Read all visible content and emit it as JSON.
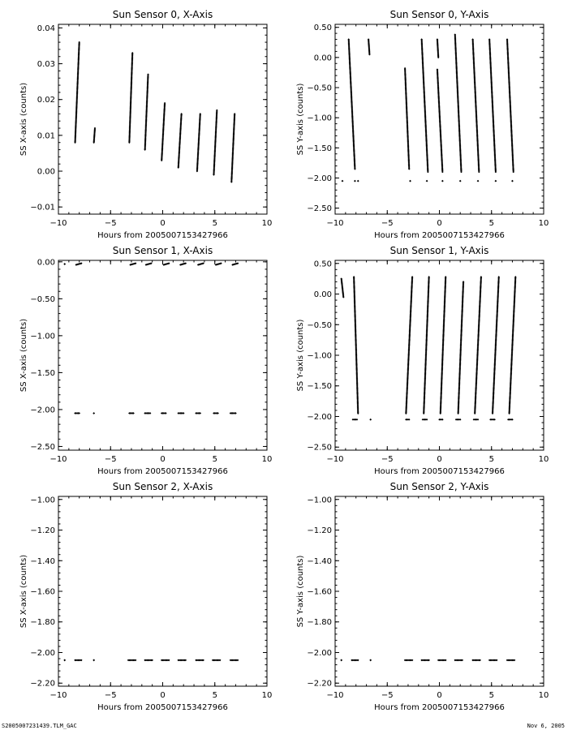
{
  "footer": {
    "left": "S2005007231439.TLM_GAC",
    "right": "Nov  6, 2005"
  },
  "chart_data": [
    {
      "type": "scatter",
      "title": "Sun Sensor 0, X-Axis",
      "xlabel": "Hours from 2005007153427966",
      "ylabel": "SS X-axis (counts)",
      "xlim": [
        -10,
        10
      ],
      "ylim": [
        -0.012,
        0.041
      ],
      "xticks": [
        -10,
        -5,
        0,
        5,
        10
      ],
      "xticklabels": [
        "−10",
        "−5",
        "0",
        "5",
        "10"
      ],
      "yticks": [
        -0.01,
        0.0,
        0.01,
        0.02,
        0.03,
        0.04
      ],
      "yticklabels": [
        "−0.01",
        "0.00",
        "0.01",
        "0.02",
        "0.03",
        "0.04"
      ],
      "grid": false,
      "segments": [
        {
          "x": [
            -8.4,
            -8.0
          ],
          "y": [
            0.008,
            0.036
          ]
        },
        {
          "x": [
            -6.6,
            -6.5
          ],
          "y": [
            0.008,
            0.012
          ]
        },
        {
          "x": [
            -3.2,
            -2.9
          ],
          "y": [
            0.008,
            0.033
          ]
        },
        {
          "x": [
            -1.7,
            -1.4
          ],
          "y": [
            0.006,
            0.027
          ]
        },
        {
          "x": [
            -0.1,
            0.2
          ],
          "y": [
            0.003,
            0.019
          ]
        },
        {
          "x": [
            1.5,
            1.8
          ],
          "y": [
            0.001,
            0.016
          ]
        },
        {
          "x": [
            3.3,
            3.6
          ],
          "y": [
            0.0,
            0.016
          ]
        },
        {
          "x": [
            4.9,
            5.2
          ],
          "y": [
            -0.001,
            0.017
          ]
        },
        {
          "x": [
            6.6,
            6.9
          ],
          "y": [
            -0.003,
            0.016
          ]
        }
      ],
      "points": []
    },
    {
      "type": "scatter",
      "title": "Sun Sensor 0, Y-Axis",
      "xlabel": "Hours from 2005007153427966",
      "ylabel": "SS Y-axis (counts)",
      "xlim": [
        -10,
        10
      ],
      "ylim": [
        -2.6,
        0.55
      ],
      "xticks": [
        -10,
        -5,
        0,
        5,
        10
      ],
      "xticklabels": [
        "−10",
        "−5",
        "0",
        "5",
        "10"
      ],
      "yticks": [
        -2.5,
        -2.0,
        -1.5,
        -1.0,
        -0.5,
        0.0,
        0.5
      ],
      "yticklabels": [
        "−2.50",
        "−2.00",
        "−1.50",
        "−1.00",
        "−0.50",
        "0.00",
        "0.50"
      ],
      "grid": false,
      "segments": [
        {
          "x": [
            -8.7,
            -8.1
          ],
          "y": [
            0.3,
            -1.85
          ]
        },
        {
          "x": [
            -6.8,
            -6.7
          ],
          "y": [
            0.3,
            0.05
          ]
        },
        {
          "x": [
            -3.3,
            -2.9
          ],
          "y": [
            -0.18,
            -1.85
          ]
        },
        {
          "x": [
            -1.7,
            -1.1
          ],
          "y": [
            0.3,
            -1.9
          ]
        },
        {
          "x": [
            -0.2,
            0.3
          ],
          "y": [
            -0.2,
            -1.9
          ]
        },
        {
          "x": [
            -0.2,
            -0.1
          ],
          "y": [
            0.3,
            0.0
          ]
        },
        {
          "x": [
            1.5,
            2.1
          ],
          "y": [
            0.38,
            -1.9
          ]
        },
        {
          "x": [
            3.2,
            3.8
          ],
          "y": [
            0.3,
            -1.9
          ]
        },
        {
          "x": [
            4.8,
            5.4
          ],
          "y": [
            0.3,
            -1.9
          ]
        },
        {
          "x": [
            6.5,
            7.1
          ],
          "y": [
            0.3,
            -1.9
          ]
        }
      ],
      "points": [
        {
          "x": -9.3,
          "y": -2.05
        },
        {
          "x": -7.8,
          "y": -2.05
        },
        {
          "x": -8.1,
          "y": -2.05
        },
        {
          "x": -2.8,
          "y": -2.05
        },
        {
          "x": -1.2,
          "y": -2.05
        },
        {
          "x": 0.3,
          "y": -2.05
        },
        {
          "x": 2.0,
          "y": -2.05
        },
        {
          "x": 3.7,
          "y": -2.05
        },
        {
          "x": 5.4,
          "y": -2.05
        },
        {
          "x": 7.0,
          "y": -2.05
        }
      ]
    },
    {
      "type": "scatter",
      "title": "Sun Sensor 1, X-Axis",
      "xlabel": "Hours from 2005007153427966",
      "ylabel": "SS X-axis (counts)",
      "xlim": [
        -10,
        10
      ],
      "ylim": [
        -2.55,
        0.02
      ],
      "xticks": [
        -10,
        -5,
        0,
        5,
        10
      ],
      "xticklabels": [
        "−10",
        "−5",
        "0",
        "5",
        "10"
      ],
      "yticks": [
        -2.5,
        -2.0,
        -1.5,
        -1.0,
        -0.5,
        0.0
      ],
      "yticklabels": [
        "−2.50",
        "−2.00",
        "−1.50",
        "−1.00",
        "−0.50",
        "0.00"
      ],
      "grid": false,
      "segments": [
        {
          "x": [
            -8.3,
            -7.8
          ],
          "y": [
            -0.04,
            -0.02
          ]
        },
        {
          "x": [
            -3.1,
            -2.6
          ],
          "y": [
            -0.04,
            -0.02
          ]
        },
        {
          "x": [
            -1.6,
            -1.1
          ],
          "y": [
            -0.04,
            -0.02
          ]
        },
        {
          "x": [
            0.1,
            0.6
          ],
          "y": [
            -0.04,
            -0.02
          ]
        },
        {
          "x": [
            1.7,
            2.2
          ],
          "y": [
            -0.04,
            -0.02
          ]
        },
        {
          "x": [
            3.4,
            3.9
          ],
          "y": [
            -0.04,
            -0.02
          ]
        },
        {
          "x": [
            5.1,
            5.6
          ],
          "y": [
            -0.04,
            -0.02
          ]
        },
        {
          "x": [
            6.7,
            7.2
          ],
          "y": [
            -0.04,
            -0.02
          ]
        },
        {
          "x": [
            -8.4,
            -8.0
          ],
          "y": [
            -2.05,
            -2.05
          ]
        },
        {
          "x": [
            -3.2,
            -2.8
          ],
          "y": [
            -2.05,
            -2.05
          ]
        },
        {
          "x": [
            -1.7,
            -1.2
          ],
          "y": [
            -2.05,
            -2.05
          ]
        },
        {
          "x": [
            -0.1,
            0.3
          ],
          "y": [
            -2.05,
            -2.05
          ]
        },
        {
          "x": [
            1.5,
            2.0
          ],
          "y": [
            -2.05,
            -2.05
          ]
        },
        {
          "x": [
            3.2,
            3.6
          ],
          "y": [
            -2.05,
            -2.05
          ]
        },
        {
          "x": [
            4.9,
            5.3
          ],
          "y": [
            -2.05,
            -2.05
          ]
        },
        {
          "x": [
            6.5,
            7.0
          ],
          "y": [
            -2.05,
            -2.05
          ]
        }
      ],
      "points": [
        {
          "x": -9.4,
          "y": -0.03
        },
        {
          "x": -6.6,
          "y": -2.05
        }
      ]
    },
    {
      "type": "scatter",
      "title": "Sun Sensor 1, Y-Axis",
      "xlabel": "Hours from 2005007153427966",
      "ylabel": "SS Y-axis (counts)",
      "xlim": [
        -10,
        10
      ],
      "ylim": [
        -2.55,
        0.55
      ],
      "xticks": [
        -10,
        -5,
        0,
        5,
        10
      ],
      "xticklabels": [
        "−10",
        "−5",
        "0",
        "5",
        "10"
      ],
      "yticks": [
        -2.5,
        -2.0,
        -1.5,
        -1.0,
        -0.5,
        0.0,
        0.5
      ],
      "yticklabels": [
        "−2.50",
        "−2.00",
        "−1.50",
        "−1.00",
        "−0.50",
        "0.00",
        "0.50"
      ],
      "grid": false,
      "segments": [
        {
          "x": [
            -9.4,
            -9.2
          ],
          "y": [
            0.25,
            -0.05
          ]
        },
        {
          "x": [
            -8.2,
            -7.8
          ],
          "y": [
            0.28,
            -1.95
          ]
        },
        {
          "x": [
            -3.2,
            -2.6
          ],
          "y": [
            -1.95,
            0.28
          ]
        },
        {
          "x": [
            -1.5,
            -1.0
          ],
          "y": [
            -1.95,
            0.28
          ]
        },
        {
          "x": [
            0.1,
            0.6
          ],
          "y": [
            -1.95,
            0.28
          ]
        },
        {
          "x": [
            1.8,
            2.3
          ],
          "y": [
            -1.95,
            0.2
          ]
        },
        {
          "x": [
            3.4,
            4.0
          ],
          "y": [
            -1.95,
            0.28
          ]
        },
        {
          "x": [
            5.1,
            5.7
          ],
          "y": [
            -1.95,
            0.28
          ]
        },
        {
          "x": [
            6.7,
            7.3
          ],
          "y": [
            -1.95,
            0.28
          ]
        },
        {
          "x": [
            -8.3,
            -7.9
          ],
          "y": [
            -2.05,
            -2.05
          ]
        },
        {
          "x": [
            -3.2,
            -2.9
          ],
          "y": [
            -2.05,
            -2.05
          ]
        },
        {
          "x": [
            -1.6,
            -1.2
          ],
          "y": [
            -2.05,
            -2.05
          ]
        },
        {
          "x": [
            0.0,
            0.3
          ],
          "y": [
            -2.05,
            -2.05
          ]
        },
        {
          "x": [
            1.6,
            2.0
          ],
          "y": [
            -2.05,
            -2.05
          ]
        },
        {
          "x": [
            3.3,
            3.7
          ],
          "y": [
            -2.05,
            -2.05
          ]
        },
        {
          "x": [
            4.9,
            5.3
          ],
          "y": [
            -2.05,
            -2.05
          ]
        },
        {
          "x": [
            6.6,
            7.0
          ],
          "y": [
            -2.05,
            -2.05
          ]
        }
      ],
      "points": [
        {
          "x": -6.6,
          "y": -2.05
        }
      ]
    },
    {
      "type": "scatter",
      "title": "Sun Sensor 2, X-Axis",
      "xlabel": "Hours from 2005007153427966",
      "ylabel": "SS X-axis (counts)",
      "xlim": [
        -10,
        10
      ],
      "ylim": [
        -2.22,
        -0.98
      ],
      "xticks": [
        -10,
        -5,
        0,
        5,
        10
      ],
      "xticklabels": [
        "−10",
        "−5",
        "0",
        "5",
        "10"
      ],
      "yticks": [
        -2.2,
        -2.0,
        -1.8,
        -1.6,
        -1.4,
        -1.2,
        -1.0
      ],
      "yticklabels": [
        "−2.20",
        "−2.00",
        "−1.80",
        "−1.60",
        "−1.40",
        "−1.20",
        "−1.00"
      ],
      "grid": false,
      "segments": [
        {
          "x": [
            -8.4,
            -7.8
          ],
          "y": [
            -2.05,
            -2.05
          ]
        },
        {
          "x": [
            -3.3,
            -2.6
          ],
          "y": [
            -2.05,
            -2.05
          ]
        },
        {
          "x": [
            -1.7,
            -1.0
          ],
          "y": [
            -2.05,
            -2.05
          ]
        },
        {
          "x": [
            -0.1,
            0.6
          ],
          "y": [
            -2.05,
            -2.05
          ]
        },
        {
          "x": [
            1.5,
            2.2
          ],
          "y": [
            -2.05,
            -2.05
          ]
        },
        {
          "x": [
            3.2,
            3.9
          ],
          "y": [
            -2.05,
            -2.05
          ]
        },
        {
          "x": [
            4.8,
            5.5
          ],
          "y": [
            -2.05,
            -2.05
          ]
        },
        {
          "x": [
            6.5,
            7.2
          ],
          "y": [
            -2.05,
            -2.05
          ]
        }
      ],
      "points": [
        {
          "x": -9.4,
          "y": -2.05
        },
        {
          "x": -6.6,
          "y": -2.05
        }
      ]
    },
    {
      "type": "scatter",
      "title": "Sun Sensor 2, Y-Axis",
      "xlabel": "Hours from 2005007153427966",
      "ylabel": "SS Y-axis (counts)",
      "xlim": [
        -10,
        10
      ],
      "ylim": [
        -2.22,
        -0.98
      ],
      "xticks": [
        -10,
        -5,
        0,
        5,
        10
      ],
      "xticklabels": [
        "−10",
        "−5",
        "0",
        "5",
        "10"
      ],
      "yticks": [
        -2.2,
        -2.0,
        -1.8,
        -1.6,
        -1.4,
        -1.2,
        -1.0
      ],
      "yticklabels": [
        "−2.20",
        "−2.00",
        "−1.80",
        "−1.60",
        "−1.40",
        "−1.20",
        "−1.00"
      ],
      "grid": false,
      "segments": [
        {
          "x": [
            -8.4,
            -7.8
          ],
          "y": [
            -2.05,
            -2.05
          ]
        },
        {
          "x": [
            -3.3,
            -2.6
          ],
          "y": [
            -2.05,
            -2.05
          ]
        },
        {
          "x": [
            -1.7,
            -1.0
          ],
          "y": [
            -2.05,
            -2.05
          ]
        },
        {
          "x": [
            -0.1,
            0.6
          ],
          "y": [
            -2.05,
            -2.05
          ]
        },
        {
          "x": [
            1.5,
            2.2
          ],
          "y": [
            -2.05,
            -2.05
          ]
        },
        {
          "x": [
            3.2,
            3.9
          ],
          "y": [
            -2.05,
            -2.05
          ]
        },
        {
          "x": [
            4.8,
            5.5
          ],
          "y": [
            -2.05,
            -2.05
          ]
        },
        {
          "x": [
            6.5,
            7.2
          ],
          "y": [
            -2.05,
            -2.05
          ]
        }
      ],
      "points": [
        {
          "x": -9.4,
          "y": -2.05
        },
        {
          "x": -6.6,
          "y": -2.05
        }
      ]
    }
  ]
}
